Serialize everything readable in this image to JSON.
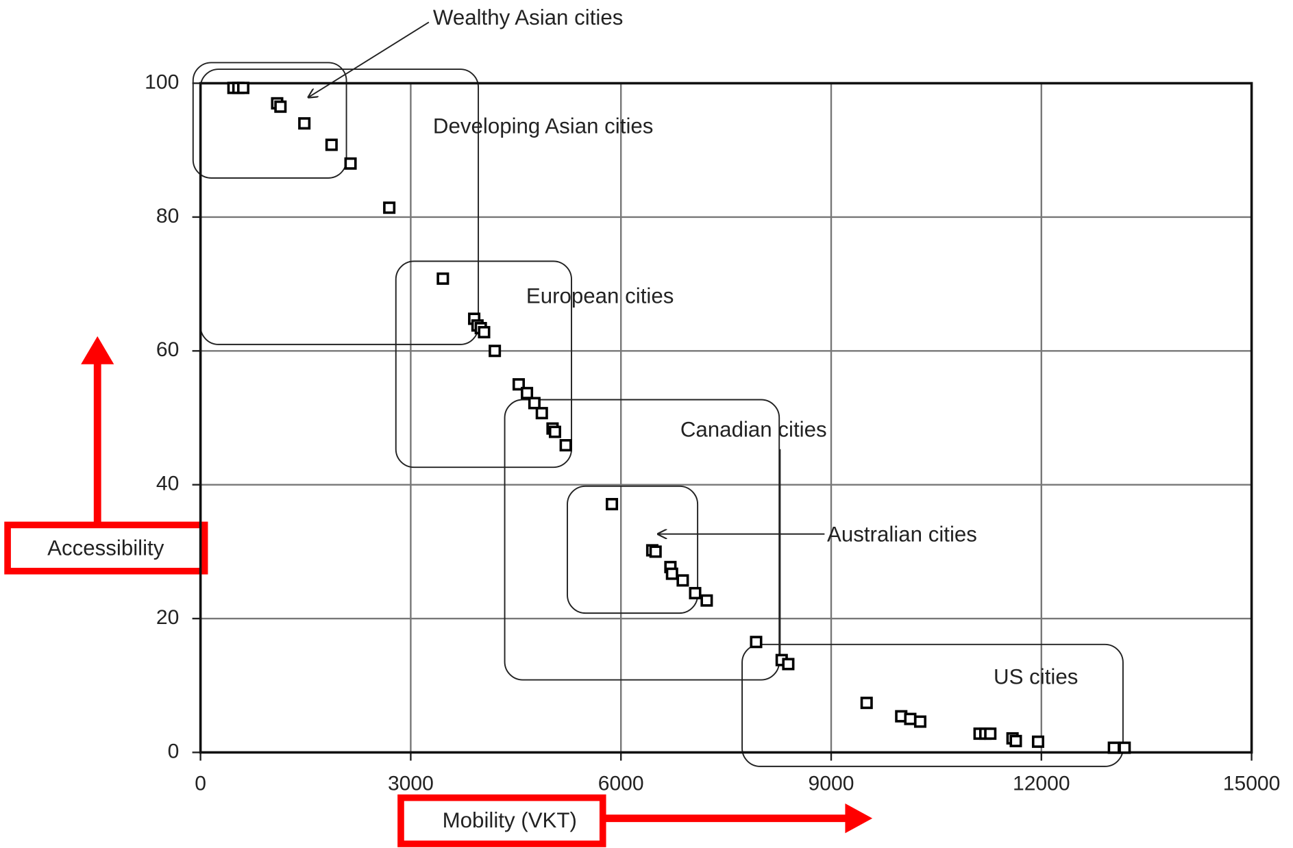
{
  "chart_data": {
    "type": "scatter",
    "x_label": "Mobility (VKT)",
    "y_label": "Accessibility",
    "xlim": [
      0,
      15000
    ],
    "ylim": [
      0,
      100
    ],
    "xticks": [
      0,
      3000,
      6000,
      9000,
      12000,
      15000
    ],
    "yticks": [
      0,
      20,
      40,
      60,
      80,
      100
    ],
    "grid": true,
    "color": "#000000",
    "annotations": [
      "Wealthy Asian cities",
      "Developing Asian cities",
      "European cities",
      "Canadian cities",
      "Australian cities",
      "US cities"
    ],
    "x": [
      470,
      540,
      610,
      1094,
      1141,
      1482,
      1870,
      2141,
      2694,
      3459,
      3906,
      3953,
      4000,
      4047,
      4200,
      4541,
      4659,
      4765,
      4871,
      5024,
      5059,
      5212,
      5871,
      6447,
      6494,
      6706,
      6729,
      6882,
      7059,
      7224,
      7929,
      8294,
      8388,
      9506,
      10000,
      10129,
      10271,
      11118,
      11200,
      11271,
      11588,
      11635,
      11953,
      13035,
      13188
    ],
    "values": [
      99.3,
      99.3,
      99.3,
      97,
      96.5,
      94,
      90.8,
      88,
      81.4,
      70.8,
      64.8,
      63.8,
      63.4,
      62.8,
      60,
      55,
      53.7,
      52.2,
      50.7,
      48.4,
      47.9,
      45.9,
      37.1,
      30.2,
      30,
      27.7,
      26.7,
      25.7,
      23.8,
      22.7,
      16.5,
      13.8,
      13.2,
      7.4,
      5.4,
      5,
      4.6,
      2.8,
      2.8,
      2.8,
      2.1,
      1.7,
      1.6,
      0.7,
      0.7
    ]
  }
}
